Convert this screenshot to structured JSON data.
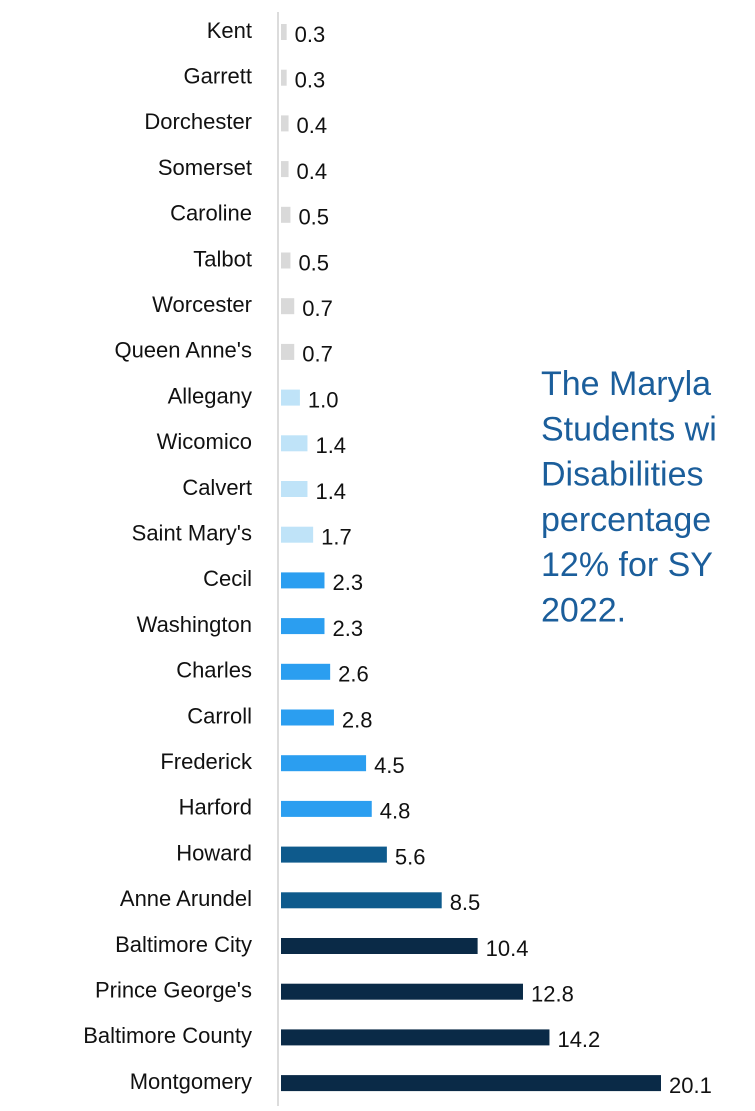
{
  "chart_data": {
    "type": "barh",
    "categories": [
      "Kent",
      "Garrett",
      "Dorchester",
      "Somerset",
      "Caroline",
      "Talbot",
      "Worcester",
      "Queen Anne's",
      "Allegany",
      "Wicomico",
      "Calvert",
      "Saint Mary's",
      "Cecil",
      "Washington",
      "Charles",
      "Carroll",
      "Frederick",
      "Harford",
      "Howard",
      "Anne Arundel",
      "Baltimore City",
      "Prince George's",
      "Baltimore County",
      "Montgomery"
    ],
    "values": [
      0.3,
      0.3,
      0.4,
      0.4,
      0.5,
      0.5,
      0.7,
      0.7,
      1.0,
      1.4,
      1.4,
      1.7,
      2.3,
      2.3,
      2.6,
      2.8,
      4.5,
      4.8,
      5.6,
      8.5,
      10.4,
      12.8,
      14.2,
      20.1
    ],
    "value_labels": [
      "0.3",
      "0.3",
      "0.4",
      "0.4",
      "0.5",
      "0.5",
      "0.7",
      "0.7",
      "1.0",
      "1.4",
      "1.4",
      "1.7",
      "2.3",
      "2.3",
      "2.6",
      "2.8",
      "4.5",
      "4.8",
      "5.6",
      "8.5",
      "10.4",
      "12.8",
      "14.2",
      "20.1"
    ],
    "colors": [
      "#d9d9d9",
      "#d9d9d9",
      "#d9d9d9",
      "#d9d9d9",
      "#d9d9d9",
      "#d9d9d9",
      "#d9d9d9",
      "#d9d9d9",
      "#bfe3f8",
      "#bfe3f8",
      "#bfe3f8",
      "#bfe3f8",
      "#2b9ef0",
      "#2b9ef0",
      "#2b9ef0",
      "#2b9ef0",
      "#2b9ef0",
      "#2b9ef0",
      "#0e5a8c",
      "#0e5a8c",
      "#0a2a47",
      "#0a2a47",
      "#0a2a47",
      "#0a2a47"
    ],
    "annotation": [
      "The Maryla",
      "Students wi",
      "Disabilities",
      "percentage",
      "12% for SY",
      "2022."
    ]
  }
}
